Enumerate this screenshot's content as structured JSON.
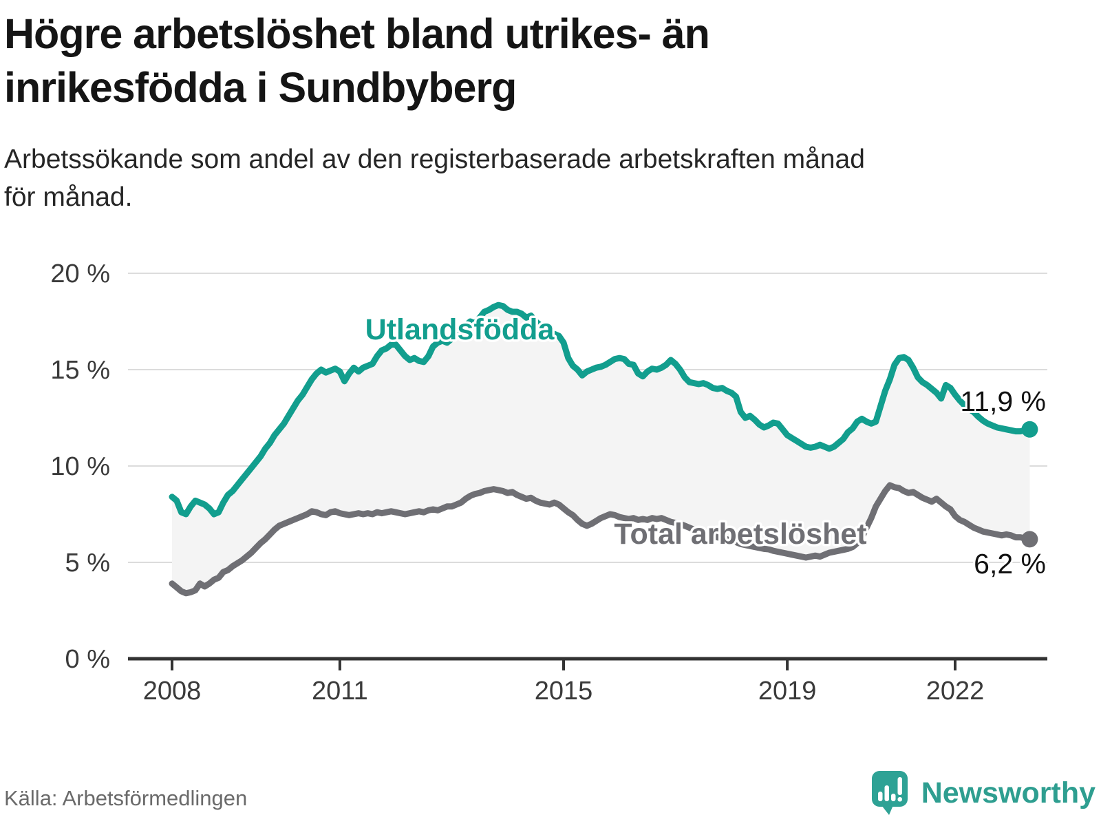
{
  "header": {
    "title_lines": [
      "Högre arbetslöshet bland utrikes- än",
      "inrikesfödda i Sundbyberg"
    ],
    "subtitle_lines": [
      "Arbetssökande som andel av den registerbaserade arbetskraften månad",
      "för månad."
    ]
  },
  "footer": {
    "source": "Källa: Arbetsförmedlingen",
    "brand": "Newsworthy"
  },
  "colors": {
    "teal": "#129e8e",
    "gray": "#6f6f74",
    "area": "#f4f4f4",
    "grid": "#dcdcdc",
    "axis": "#333333",
    "brand": "#2e9e90"
  },
  "chart_data": {
    "type": "line",
    "unit": "%",
    "frequency": "monthly",
    "x_start": "2008-01",
    "x_end": "2023-05",
    "ylim": [
      0,
      20
    ],
    "grid": true,
    "legend_position": "inline-labels",
    "x_ticks": [
      2008,
      2011,
      2015,
      2019,
      2022
    ],
    "y_ticks": [
      {
        "label": "20 %",
        "value": 20
      },
      {
        "label": "15 %",
        "value": 15
      },
      {
        "label": "10 %",
        "value": 10
      },
      {
        "label": "5 %",
        "value": 5
      },
      {
        "label": "0 %",
        "value": 0
      }
    ],
    "series": [
      {
        "name": "Utlandsfödda",
        "color": "#129e8e",
        "end_label": "11,9 %",
        "values": [
          8.4,
          8.2,
          7.6,
          7.5,
          7.9,
          8.2,
          8.1,
          8.0,
          7.8,
          7.5,
          7.6,
          8.1,
          8.5,
          8.7,
          9.0,
          9.3,
          9.6,
          9.9,
          10.2,
          10.5,
          10.9,
          11.2,
          11.6,
          11.9,
          12.2,
          12.6,
          13.0,
          13.4,
          13.7,
          14.1,
          14.5,
          14.8,
          15.0,
          14.85,
          14.95,
          15.05,
          14.9,
          14.4,
          14.8,
          15.1,
          14.9,
          15.1,
          15.2,
          15.3,
          15.7,
          16.0,
          16.1,
          16.3,
          16.3,
          16.0,
          15.7,
          15.5,
          15.6,
          15.45,
          15.4,
          15.7,
          16.2,
          16.4,
          16.5,
          16.4,
          16.6,
          16.8,
          17.0,
          17.3,
          17.5,
          17.4,
          17.7,
          18.0,
          18.1,
          18.25,
          18.35,
          18.3,
          18.1,
          18.0,
          18.0,
          17.9,
          17.7,
          17.8,
          17.5,
          17.3,
          17.1,
          16.9,
          16.85,
          16.75,
          16.4,
          15.6,
          15.2,
          15.0,
          14.7,
          14.9,
          15.0,
          15.1,
          15.15,
          15.25,
          15.4,
          15.55,
          15.6,
          15.55,
          15.3,
          15.25,
          14.8,
          14.65,
          14.9,
          15.05,
          15.0,
          15.1,
          15.25,
          15.5,
          15.3,
          15.0,
          14.6,
          14.35,
          14.3,
          14.25,
          14.3,
          14.2,
          14.05,
          14.0,
          14.05,
          13.9,
          13.8,
          13.6,
          12.8,
          12.5,
          12.6,
          12.4,
          12.15,
          12.0,
          12.1,
          12.25,
          12.2,
          11.9,
          11.6,
          11.45,
          11.3,
          11.15,
          11.0,
          10.95,
          11.0,
          11.1,
          11.0,
          10.9,
          11.0,
          11.2,
          11.4,
          11.75,
          11.95,
          12.3,
          12.45,
          12.3,
          12.2,
          12.3,
          13.1,
          13.9,
          14.5,
          15.25,
          15.6,
          15.65,
          15.5,
          15.1,
          14.6,
          14.35,
          14.2,
          14.0,
          13.8,
          13.5,
          14.2,
          14.05,
          13.7,
          13.4,
          13.15,
          12.95,
          12.8,
          12.55,
          12.35,
          12.2,
          12.1,
          12.0,
          11.95,
          11.9,
          11.85,
          11.8,
          11.8,
          11.85,
          11.9
        ]
      },
      {
        "name": "Total arbetslöshet",
        "color": "#6f6f74",
        "end_label": "6,2 %",
        "values": [
          3.9,
          3.7,
          3.5,
          3.4,
          3.45,
          3.55,
          3.9,
          3.75,
          3.9,
          4.1,
          4.2,
          4.5,
          4.6,
          4.8,
          4.95,
          5.1,
          5.3,
          5.5,
          5.75,
          6.0,
          6.2,
          6.45,
          6.7,
          6.9,
          7.0,
          7.1,
          7.2,
          7.3,
          7.4,
          7.5,
          7.65,
          7.6,
          7.5,
          7.45,
          7.6,
          7.65,
          7.55,
          7.5,
          7.45,
          7.5,
          7.55,
          7.5,
          7.55,
          7.5,
          7.6,
          7.55,
          7.6,
          7.65,
          7.6,
          7.55,
          7.5,
          7.55,
          7.6,
          7.65,
          7.6,
          7.7,
          7.75,
          7.7,
          7.8,
          7.9,
          7.9,
          8.0,
          8.1,
          8.3,
          8.45,
          8.55,
          8.6,
          8.7,
          8.75,
          8.8,
          8.75,
          8.7,
          8.6,
          8.65,
          8.5,
          8.4,
          8.3,
          8.35,
          8.2,
          8.1,
          8.05,
          8.0,
          8.1,
          8.0,
          7.8,
          7.6,
          7.45,
          7.2,
          7.0,
          6.9,
          7.0,
          7.15,
          7.3,
          7.4,
          7.5,
          7.45,
          7.35,
          7.3,
          7.25,
          7.3,
          7.2,
          7.25,
          7.2,
          7.3,
          7.25,
          7.3,
          7.2,
          7.1,
          7.05,
          7.0,
          6.9,
          6.8,
          6.7,
          6.6,
          6.55,
          6.45,
          6.4,
          6.3,
          6.25,
          6.2,
          6.1,
          6.05,
          5.95,
          5.9,
          5.85,
          5.8,
          5.75,
          5.7,
          5.68,
          5.6,
          5.55,
          5.5,
          5.45,
          5.4,
          5.35,
          5.3,
          5.25,
          5.3,
          5.35,
          5.3,
          5.4,
          5.5,
          5.55,
          5.6,
          5.65,
          5.7,
          5.8,
          6.0,
          6.3,
          6.8,
          7.3,
          7.9,
          8.3,
          8.7,
          9.0,
          8.9,
          8.85,
          8.7,
          8.6,
          8.65,
          8.5,
          8.35,
          8.25,
          8.15,
          8.3,
          8.1,
          7.9,
          7.75,
          7.4,
          7.2,
          7.1,
          6.95,
          6.8,
          6.7,
          6.6,
          6.55,
          6.5,
          6.45,
          6.4,
          6.45,
          6.4,
          6.3,
          6.3,
          6.25,
          6.2
        ]
      }
    ]
  }
}
